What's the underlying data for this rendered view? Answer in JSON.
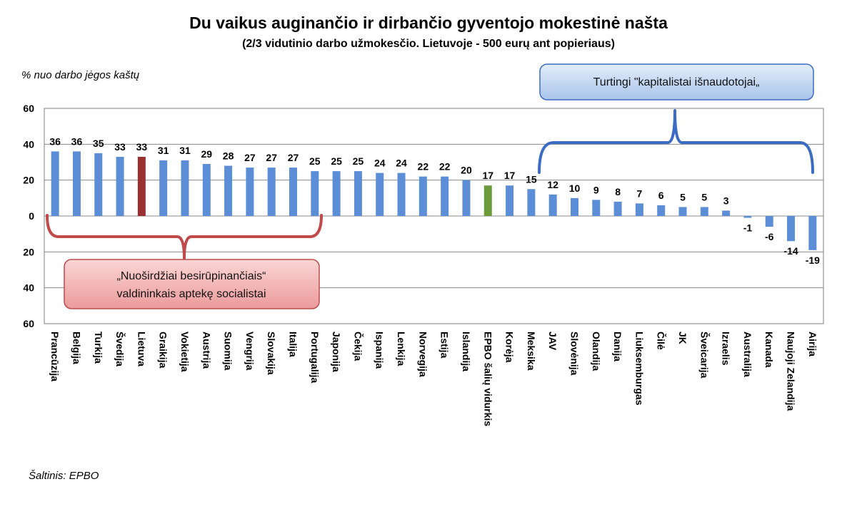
{
  "chart_data": {
    "type": "bar",
    "title": "Du vaikus auginančio ir dirbančio gyventojo mokestinė našta",
    "subtitle": "(2/3 vidutinio darbo užmokesčio. Lietuvoje - 500 eurų ant popieriaus)",
    "ylabel": "% nuo darbo jėgos kaštų",
    "xlabel": "",
    "ylim": [
      -60,
      60
    ],
    "y_ticks": [
      60,
      40,
      20,
      0,
      20,
      40,
      60
    ],
    "grid": true,
    "categories": [
      "Prancūzija",
      "Belgija",
      "Turkija",
      "Švedija",
      "Lietuva",
      "Graikija",
      "Vokietija",
      "Austrija",
      "Suomija",
      "Vengrija",
      "Slovakija",
      "Italija",
      "Portugalija",
      "Japonija",
      "Čekija",
      "Ispanija",
      "Lenkija",
      "Norvegija",
      "Estija",
      "Islandija",
      "EPBO šalių vidurkis",
      "Korėja",
      "Meksika",
      "JAV",
      "Slovėnija",
      "Olandija",
      "Danija",
      "Liuksemburgas",
      "Čilė",
      "JK",
      "Šveicarija",
      "Izraelis",
      "Australija",
      "Kanada",
      "Naujoji Zelandija",
      "Airija"
    ],
    "values": [
      36,
      36,
      35,
      33,
      33,
      31,
      31,
      29,
      28,
      27,
      27,
      27,
      25,
      25,
      25,
      24,
      24,
      22,
      22,
      20,
      17,
      17,
      15,
      12,
      10,
      9,
      8,
      7,
      6,
      5,
      5,
      3,
      -1,
      -6,
      -14,
      -19
    ],
    "bar_colors": {
      "default": "#5b8ed6",
      "Lietuva": "#9b3030",
      "EPBO šalių vidurkis": "#6b9a3a"
    },
    "annotations": [
      {
        "text_lines": [
          "„Nuoširdžiai besirūpinančiais“",
          "valdininkais aptekę socialistai"
        ],
        "style": "red-callout",
        "spans": [
          "Prancūzija",
          "Portugalija"
        ]
      },
      {
        "text_lines": [
          "Turtingi \"kapitalistai išnaudotojai„"
        ],
        "style": "blue-callout",
        "spans": [
          "JAV",
          "Airija"
        ]
      }
    ]
  },
  "source": "Šaltinis: EPBO",
  "colors": {
    "bar": "#5b8ed6",
    "highlight_lietuva": "#9b3030",
    "highlight_oecd": "#6b9a3a",
    "bracket_red": "#c04a4a",
    "bracket_blue": "#3b6cc4",
    "callout_red_fill": "#f4b5b5",
    "callout_blue_fill": "#c5d8f2"
  }
}
